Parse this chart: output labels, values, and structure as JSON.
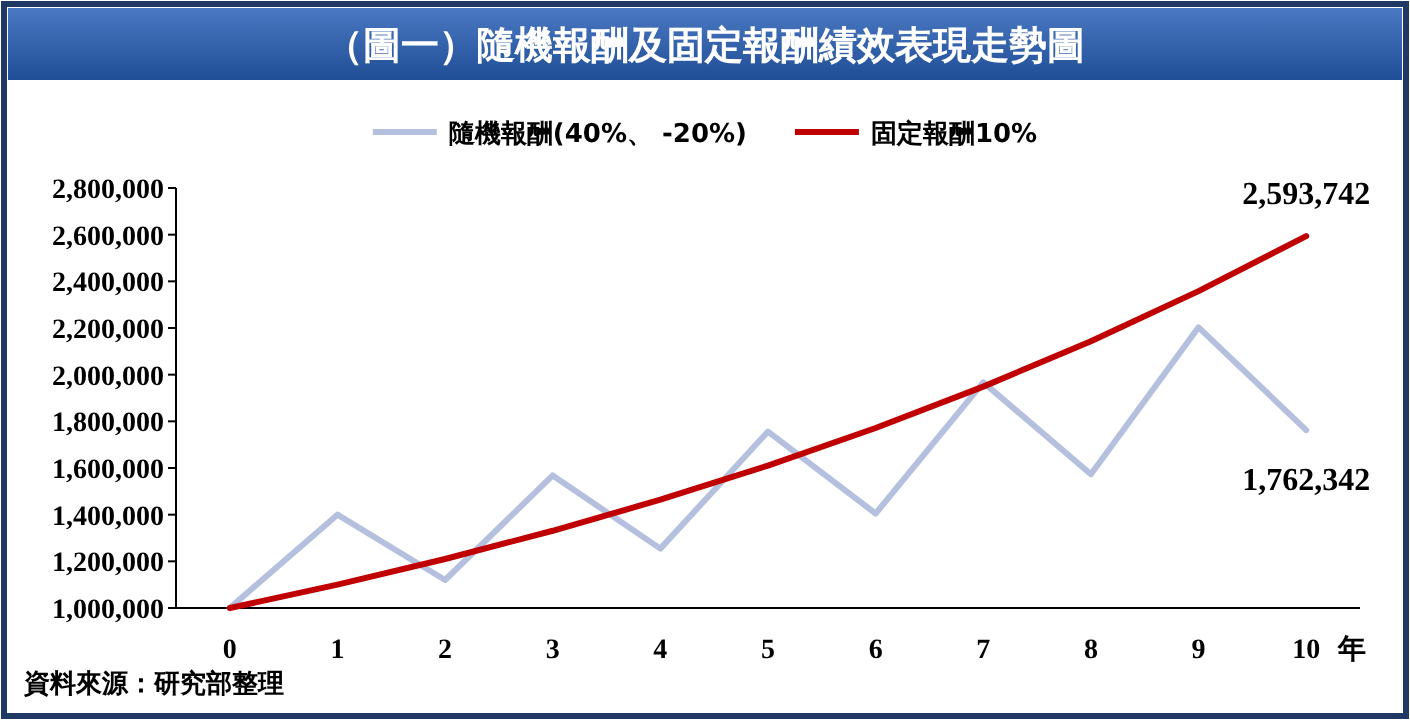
{
  "chart_data": {
    "type": "line",
    "title": "（圖一）隨機報酬及固定報酬績效表現走勢圖",
    "xlabel": "年",
    "categories": [
      "0",
      "1",
      "2",
      "3",
      "4",
      "5",
      "6",
      "7",
      "8",
      "9",
      "10"
    ],
    "series": [
      {
        "name": "隨機報酬(40%、 -20%)",
        "color": "#b4c0de",
        "values": [
          1000000,
          1400000,
          1120000,
          1568000,
          1254400,
          1756160,
          1404928,
          1966899,
          1573519,
          2202927,
          1762342
        ]
      },
      {
        "name": "固定報酬10%",
        "color": "#c00000",
        "values": [
          1000000,
          1100000,
          1210000,
          1331000,
          1464100,
          1610510,
          1771561,
          1948717,
          2143589,
          2357948,
          2593742
        ]
      }
    ],
    "ylim": [
      1000000,
      2800000
    ],
    "yticks": [
      {
        "value": 1000000,
        "label": "1,000,000"
      },
      {
        "value": 1200000,
        "label": "1,200,000"
      },
      {
        "value": 1400000,
        "label": "1,400,000"
      },
      {
        "value": 1600000,
        "label": "1,600,000"
      },
      {
        "value": 1800000,
        "label": "1,800,000"
      },
      {
        "value": 2000000,
        "label": "2,000,000"
      },
      {
        "value": 2200000,
        "label": "2,200,000"
      },
      {
        "value": 2400000,
        "label": "2,400,000"
      },
      {
        "value": 2600000,
        "label": "2,600,000"
      },
      {
        "value": 2800000,
        "label": "2,800,000"
      }
    ],
    "grid": false,
    "legend": "top",
    "marker": "none",
    "line_style": "solid",
    "annotations": [
      {
        "text": "2,593,742",
        "x": "10",
        "y": 2593742
      },
      {
        "text": "1,762,342",
        "x": "10",
        "y": 1762342
      },
      "資料來源：研究部整理"
    ]
  }
}
